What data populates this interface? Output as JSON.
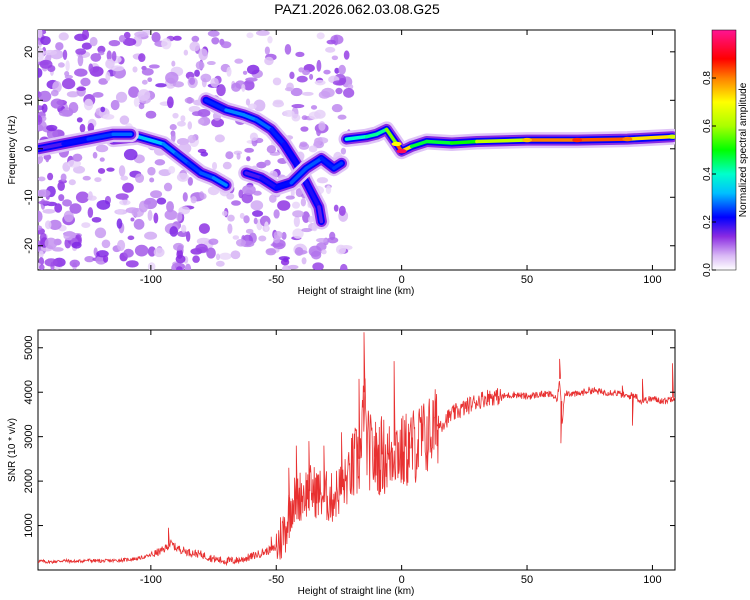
{
  "title": "PAZ1.2026.062.03.08.G25",
  "chart_data": [
    {
      "type": "heatmap",
      "name": "spectrogram",
      "xlabel": "Height of straight line (km)",
      "ylabel": "Frequency (Hz)",
      "xlim": [
        -145,
        109
      ],
      "ylim": [
        -25,
        24.5
      ],
      "xticks": [
        -100,
        -50,
        0,
        50,
        100
      ],
      "yticks": [
        -20,
        -10,
        0,
        10,
        20
      ],
      "xtick_labels": [
        "-100",
        "-50",
        "0",
        "50",
        "100"
      ],
      "ytick_labels": [
        "-20",
        "-10",
        "0",
        "10",
        "20"
      ],
      "colorbar": {
        "label": "Normalized spectral amplitude",
        "range": [
          0,
          1
        ],
        "ticks": [
          0.0,
          0.2,
          0.4,
          0.6,
          0.8
        ],
        "tick_labels": [
          "0.0",
          "0.2",
          "0.4",
          "0.6",
          "0.8"
        ]
      },
      "ridges": [
        {
          "name": "main-tone",
          "points": [
            [
              -22,
              2
            ],
            [
              -14,
              2.5
            ],
            [
              -10,
              3
            ],
            [
              -6,
              4
            ],
            [
              -2,
              1
            ],
            [
              0,
              -0.5
            ],
            [
              4,
              0.5
            ],
            [
              10,
              1.5
            ],
            [
              20,
              1.2
            ],
            [
              30,
              1.5
            ],
            [
              50,
              1.8
            ],
            [
              70,
              1.8
            ],
            [
              90,
              2
            ],
            [
              108,
              2.5
            ]
          ],
          "amplitude": [
            0.35,
            0.45,
            0.4,
            0.45,
            0.7,
            0.95,
            0.5,
            0.45,
            0.5,
            0.5,
            0.75,
            0.85,
            0.8,
            0.65
          ]
        },
        {
          "name": "branch-a",
          "points": [
            [
              -115,
              2
            ],
            [
              -105,
              2.5
            ],
            [
              -95,
              1
            ],
            [
              -90,
              -1
            ],
            [
              -85,
              -3
            ],
            [
              -80,
              -5
            ],
            [
              -75,
              -6
            ],
            [
              -70,
              -7.5
            ]
          ],
          "amplitude": [
            0.3,
            0.35,
            0.3,
            0.28,
            0.25,
            0.25,
            0.28,
            0.3
          ]
        },
        {
          "name": "branch-b",
          "points": [
            [
              -78,
              10
            ],
            [
              -70,
              8
            ],
            [
              -63,
              7
            ],
            [
              -58,
              6
            ],
            [
              -52,
              4
            ],
            [
              -47,
              1
            ],
            [
              -42,
              -3
            ],
            [
              -38,
              -7
            ],
            [
              -33,
              -12
            ],
            [
              -32,
              -15
            ]
          ],
          "amplitude": [
            0.18,
            0.3,
            0.28,
            0.3,
            0.25,
            0.22,
            0.2,
            0.22,
            0.18,
            0.15
          ]
        },
        {
          "name": "branch-c",
          "points": [
            [
              -62,
              -5
            ],
            [
              -56,
              -6
            ],
            [
              -50,
              -8
            ],
            [
              -44,
              -7
            ],
            [
              -38,
              -4
            ],
            [
              -32,
              -2
            ],
            [
              -27,
              -4
            ],
            [
              -24,
              -3
            ]
          ],
          "amplitude": [
            0.15,
            0.2,
            0.2,
            0.25,
            0.28,
            0.25,
            0.22,
            0.28
          ]
        },
        {
          "name": "branch-d",
          "points": [
            [
              -145,
              0
            ],
            [
              -135,
              1
            ],
            [
              -125,
              2
            ],
            [
              -115,
              3
            ],
            [
              -108,
              3
            ]
          ],
          "amplitude": [
            0.15,
            0.2,
            0.25,
            0.25,
            0.3
          ]
        }
      ]
    },
    {
      "type": "line",
      "name": "snr",
      "xlabel": "Height of straight line (km)",
      "ylabel": "SNR (10 * v/v)",
      "xlim": [
        -145,
        109
      ],
      "ylim": [
        0,
        5400
      ],
      "xticks": [
        -100,
        -50,
        0,
        50,
        100
      ],
      "yticks": [
        1000,
        2000,
        3000,
        4000,
        5000
      ],
      "xtick_labels": [
        "-100",
        "-50",
        "0",
        "50",
        "100"
      ],
      "ytick_labels": [
        "1000",
        "2000",
        "3000",
        "4000",
        "5000"
      ],
      "color": "#e83030",
      "x": [
        -145,
        -140,
        -135,
        -130,
        -125,
        -120,
        -115,
        -110,
        -105,
        -100,
        -95,
        -92,
        -90,
        -85,
        -80,
        -75,
        -70,
        -65,
        -60,
        -55,
        -50,
        -46,
        -44,
        -40,
        -36,
        -32,
        -28,
        -25,
        -22,
        -20,
        -18,
        -16,
        -15,
        -14,
        -12,
        -10,
        -8,
        -5,
        -3,
        -1,
        0,
        2,
        5,
        8,
        10,
        13,
        16,
        20,
        25,
        30,
        35,
        40,
        45,
        50,
        55,
        60,
        62,
        63,
        64,
        65,
        70,
        75,
        80,
        85,
        90,
        93,
        95,
        100,
        105,
        109
      ],
      "y": [
        200,
        180,
        210,
        190,
        220,
        200,
        210,
        230,
        260,
        330,
        450,
        600,
        500,
        400,
        350,
        250,
        200,
        220,
        300,
        400,
        500,
        1000,
        1500,
        1700,
        1800,
        1700,
        1600,
        1800,
        2000,
        2200,
        2400,
        2600,
        4000,
        2800,
        2600,
        2500,
        2600,
        2500,
        2800,
        2700,
        2600,
        2700,
        2800,
        2900,
        3000,
        3200,
        3300,
        3500,
        3650,
        3800,
        3900,
        3900,
        3950,
        3900,
        3950,
        3950,
        3800,
        4300,
        3300,
        4000,
        3950,
        4050,
        4000,
        4000,
        3900,
        3950,
        3800,
        3850,
        3800,
        3900
      ],
      "spikes": [
        [
          -93,
          950
        ],
        [
          -52,
          750
        ],
        [
          -45,
          2300
        ],
        [
          -42,
          2800
        ],
        [
          -37,
          2900
        ],
        [
          -31,
          2800
        ],
        [
          -24,
          3100
        ],
        [
          -17,
          4300
        ],
        [
          -15,
          5350
        ],
        [
          -11,
          2900
        ],
        [
          -8,
          3200
        ],
        [
          -3,
          4700
        ],
        [
          3,
          3100
        ],
        [
          8,
          3700
        ],
        [
          14,
          3300
        ],
        [
          63,
          4750
        ],
        [
          63.5,
          2850
        ],
        [
          88,
          4150
        ],
        [
          92,
          3250
        ],
        [
          96,
          4300
        ],
        [
          108,
          4650
        ]
      ]
    }
  ]
}
